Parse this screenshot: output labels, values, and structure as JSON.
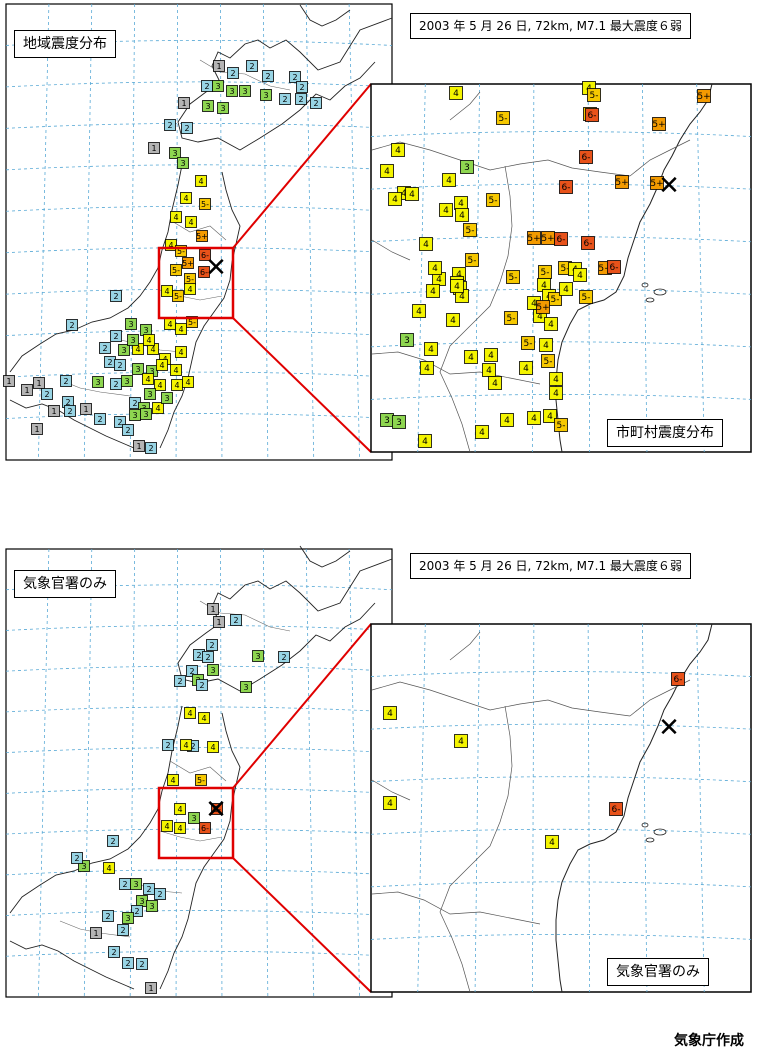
{
  "legend_colors": {
    "1": "#b4b4b4",
    "2": "#98d4e4",
    "3": "#8ed650",
    "4": "#f4f400",
    "5-": "#f6c800",
    "5+": "#f39a00",
    "6-": "#e8521a",
    "6+": "#d81f0f"
  },
  "epicenter_icon": "x-mark-icon",
  "panels": [
    {
      "name": "top",
      "map_title": "地域震度分布",
      "event_title": "2003 年 5 月 26 日, 72km, M7.1  最大震度６弱",
      "inset_title": "市町村震度分布",
      "left_marks": [
        "1",
        "2",
        "2",
        "2",
        "2",
        "2",
        "2",
        "3",
        "3",
        "3",
        "3",
        "2",
        "2",
        "2",
        "1",
        "3",
        "3",
        "2",
        "2",
        "1",
        "3",
        "3",
        "4",
        "4",
        "5-",
        "4",
        "4",
        "5+",
        "4",
        "5-",
        "6-",
        "5+",
        "5-",
        "5-",
        "6-",
        "4",
        "5-",
        "4",
        "2",
        "2",
        "4",
        "4",
        "3",
        "3",
        "2",
        "2",
        "3",
        "4",
        "4",
        "2",
        "2",
        "3",
        "3",
        "4",
        "4",
        "3",
        "2",
        "1",
        "2",
        "2",
        "3",
        "4",
        "4",
        "4",
        "3",
        "2",
        "1",
        "1",
        "2",
        "1",
        "3",
        "4",
        "2",
        "1",
        "2",
        "3",
        "3",
        "2",
        "1",
        "1",
        "2",
        "3",
        "4",
        "5-",
        "4",
        "4",
        "4",
        "3",
        "2"
      ],
      "right_marks": [
        "4",
        "4",
        "5-",
        "5-",
        "5-",
        "6-",
        "5+",
        "5+",
        "4",
        "6-",
        "4",
        "3",
        "4",
        "5-",
        "6-",
        "5+",
        "4",
        "4",
        "4",
        "4",
        "4",
        "4",
        "5-",
        "4",
        "5-",
        "5+",
        "6-",
        "6-",
        "5+",
        "5+",
        "5+",
        "6-",
        "4",
        "4",
        "4",
        "5-",
        "4",
        "4",
        "4",
        "5-",
        "4",
        "4",
        "4",
        "5-",
        "4",
        "5-",
        "4",
        "4",
        "5-",
        "4",
        "4",
        "5-",
        "4",
        "5+",
        "4",
        "5-",
        "5-",
        "4",
        "4",
        "4",
        "4",
        "3",
        "4",
        "4",
        "4",
        "4",
        "4",
        "4",
        "3",
        "4",
        "4",
        "4",
        "4",
        "4",
        "3",
        "4",
        "5-",
        "4"
      ]
    },
    {
      "name": "bottom",
      "map_title": "気象官署のみ",
      "event_title": "2003 年 5 月 26 日, 72km, M7.1  最大震度６弱",
      "inset_title": "気象官署のみ",
      "left_marks": [
        "1",
        "1",
        "2",
        "2",
        "2",
        "2",
        "3",
        "2",
        "3",
        "2",
        "3",
        "3",
        "2",
        "2",
        "4",
        "4",
        "2",
        "2",
        "4",
        "4",
        "4",
        "5-",
        "4",
        "6-",
        "4",
        "4",
        "6-",
        "3",
        "2",
        "3",
        "2",
        "4",
        "2",
        "3",
        "2",
        "2",
        "3",
        "3",
        "2",
        "2",
        "3",
        "2",
        "1",
        "2",
        "2",
        "2",
        "1"
      ],
      "right_marks": [
        "4",
        "4",
        "4",
        "6-",
        "6-",
        "4"
      ]
    }
  ],
  "credit": "気象庁作成"
}
